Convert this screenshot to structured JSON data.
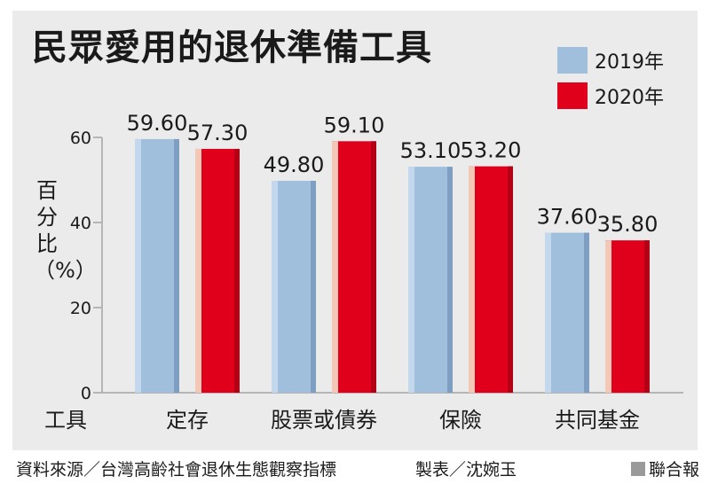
{
  "chart_data": {
    "type": "bar",
    "title": "民眾愛用的退休準備工具",
    "xlabel": "工具",
    "ylabel": "百分比（%）",
    "ylim": [
      0,
      60
    ],
    "yticks": [
      0,
      20,
      40,
      60
    ],
    "categories": [
      "定存",
      "股票或債券",
      "保險",
      "共同基金"
    ],
    "series": [
      {
        "name": "2019年",
        "values": [
          59.6,
          49.8,
          53.1,
          37.6
        ],
        "labels": [
          "59.60",
          "49.80",
          "53.10",
          "37.60"
        ],
        "color": "#9fbfdd"
      },
      {
        "name": "2020年",
        "values": [
          57.3,
          59.1,
          53.2,
          35.8
        ],
        "labels": [
          "57.30",
          "59.10",
          "53.20",
          "35.80"
        ],
        "color": "#e0001b"
      }
    ],
    "grid": false,
    "legend": "top-right"
  },
  "footer": {
    "source": "資料來源／台灣高齡社會退休生態觀察指標",
    "credit": "製表／沈婉玉",
    "brand": "聯合報"
  }
}
